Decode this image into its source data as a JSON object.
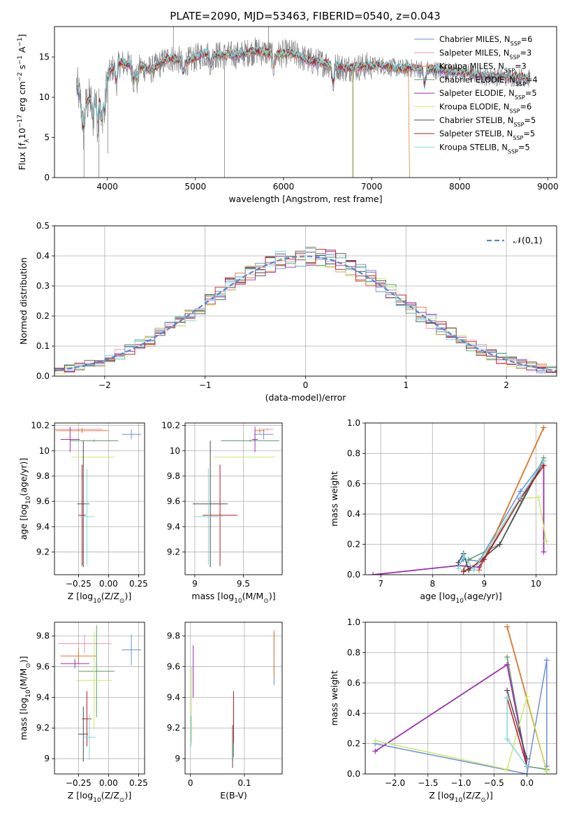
{
  "figure_title": "PLATE=2090, MJD=53463, FIBERID=0540, z=0.043",
  "colors": [
    "#6a8fd8",
    "#f08fb4",
    "#d97a2b",
    "#5a9a6a",
    "#9b2fae",
    "#cbe86b",
    "#4a4a4a",
    "#c0181f",
    "#7fd8e0"
  ],
  "legend": [
    "Chabrier MILES, N$_{SSP}$=6",
    "Salpeter MILES, N$_{SSP}$=3",
    "Kroupa MILES, N$_{SSP}$=3",
    "Chabrier ELODIE, N$_{SSP}$=4",
    "Salpeter ELODIE, N$_{SSP}$=5",
    "Kroupa ELODIE, N$_{SSP}$=6",
    "Chabrier STELIB, N$_{SSP}$=5",
    "Salpeter STELIB, N$_{SSP}$=5",
    "Kroupa STELIB, N$_{SSP}$=5"
  ],
  "chart_data": [
    {
      "id": "spectrum",
      "type": "line",
      "xlabel": "wavelength [Angstrom, rest frame]",
      "ylabel": "Flux [f$_\\lambda$10$^{-17}$ erg cm$^{-2}$ s$^{-1}$ A$^{-1}$]",
      "xlim": [
        3400,
        9100
      ],
      "ylim": [
        0,
        18.8
      ],
      "xticks": [
        4000,
        5000,
        6000,
        7000,
        8000,
        9000
      ],
      "yticks": [
        0,
        5,
        10,
        15
      ],
      "grid": false,
      "legend_placement": "right",
      "data_shape": [
        [
          3650,
          11.5
        ],
        [
          3720,
          8.5
        ],
        [
          3800,
          9.8
        ],
        [
          3900,
          11.0
        ],
        [
          4000,
          12.5
        ],
        [
          4100,
          14.3
        ],
        [
          4300,
          14.0
        ],
        [
          4500,
          13.4
        ],
        [
          4700,
          14.9
        ],
        [
          4900,
          14.4
        ],
        [
          5100,
          15.4
        ],
        [
          5300,
          15.2
        ],
        [
          5500,
          15.3
        ],
        [
          5700,
          15.8
        ],
        [
          5900,
          15.3
        ],
        [
          6100,
          15.5
        ],
        [
          6300,
          14.5
        ],
        [
          6500,
          14.2
        ],
        [
          6700,
          13.6
        ],
        [
          6900,
          13.8
        ],
        [
          7100,
          14.0
        ],
        [
          7300,
          13.6
        ],
        [
          7500,
          13.6
        ],
        [
          7700,
          13.4
        ],
        [
          7900,
          13.2
        ],
        [
          8100,
          13.0
        ],
        [
          8300,
          12.6
        ],
        [
          8500,
          12.5
        ],
        [
          8700,
          12.5
        ],
        [
          8800,
          12.3
        ]
      ]
    },
    {
      "id": "residuals",
      "type": "step",
      "xlabel": "(data-model)/error",
      "ylabel": "Normed distribution",
      "xlim": [
        -2.5,
        2.5
      ],
      "ylim": [
        0,
        0.5
      ],
      "xticks": [
        -2,
        -1,
        0,
        1,
        2
      ],
      "yticks": [
        0.0,
        0.1,
        0.2,
        0.3,
        0.4,
        0.5
      ],
      "grid": true,
      "reference_label": "$\\mathcal{N}(0,1)$",
      "legend_placement": "top-right"
    },
    {
      "id": "age_Z",
      "type": "errorbar",
      "xlabel": "Z [log$_{10}$(Z/Z$_\\odot$)]",
      "ylabel": "age  [log$_{10}$(age/yr)]",
      "xlim": [
        -0.45,
        0.3
      ],
      "ylim": [
        9.02,
        10.22
      ],
      "xticks": [
        -0.25,
        0.0,
        0.25
      ],
      "xticklabels": [
        "−0.25",
        "0.00",
        "0.25"
      ],
      "yticks": [
        9.2,
        9.4,
        9.6,
        9.8,
        10.0,
        10.2
      ],
      "grid": true,
      "points": [
        [
          0.19,
          10.13,
          0.08,
          0.04,
          0
        ],
        [
          -0.25,
          10.17,
          0.2,
          0.01,
          1
        ],
        [
          -0.22,
          10.16,
          0.22,
          0.02,
          2
        ],
        [
          -0.12,
          10.08,
          0.2,
          0.01,
          3
        ],
        [
          -0.32,
          10.09,
          0.08,
          0.1,
          4
        ],
        [
          -0.13,
          9.95,
          0.18,
          0.0,
          5
        ],
        [
          -0.21,
          9.58,
          0.05,
          0.5,
          6
        ],
        [
          -0.22,
          9.49,
          0.03,
          0.4,
          7
        ],
        [
          -0.18,
          9.48,
          0.06,
          0.38,
          8
        ]
      ]
    },
    {
      "id": "age_mass",
      "type": "errorbar",
      "xlabel": "mass [log$_{10}$(M/M$_\\odot$)]",
      "ylabel": "",
      "xlim": [
        8.9,
        9.9
      ],
      "ylim": [
        9.02,
        10.22
      ],
      "xticks": [
        9.0,
        9.5
      ],
      "yticks": [
        9.2,
        9.4,
        9.6,
        9.8,
        10.0,
        10.2
      ],
      "grid": true,
      "points": [
        [
          9.71,
          10.13,
          0.1,
          0.04,
          0
        ],
        [
          9.75,
          10.17,
          0.06,
          0.01,
          1
        ],
        [
          9.67,
          10.16,
          0.05,
          0.02,
          2
        ],
        [
          9.57,
          10.08,
          0.3,
          0.01,
          3
        ],
        [
          9.62,
          10.09,
          0.03,
          0.1,
          4
        ],
        [
          9.51,
          9.95,
          0.32,
          0.0,
          5
        ],
        [
          9.16,
          9.58,
          0.18,
          0.5,
          6
        ],
        [
          9.26,
          9.49,
          0.18,
          0.4,
          7
        ],
        [
          9.14,
          9.48,
          0.15,
          0.38,
          8
        ]
      ]
    },
    {
      "id": "mw_age",
      "type": "line",
      "xlabel": "age  [log$_{10}$(age/yr)]",
      "ylabel": "mass weight",
      "xlim": [
        6.7,
        10.4
      ],
      "ylim": [
        0,
        1.0
      ],
      "xticks": [
        7,
        8,
        9,
        10
      ],
      "yticks": [
        0.0,
        0.2,
        0.4,
        0.6,
        0.8,
        1.0
      ],
      "grid": true,
      "series": [
        {
          "c": 0,
          "p": [
            [
              8.5,
              0.06
            ],
            [
              8.6,
              0.1
            ],
            [
              8.9,
              0.09
            ],
            [
              9.7,
              0.55
            ],
            [
              10.15,
              0.75
            ]
          ]
        },
        {
          "c": 1,
          "p": [
            [
              8.9,
              0.03
            ],
            [
              10.15,
              0.97
            ]
          ]
        },
        {
          "c": 2,
          "p": [
            [
              8.9,
              0.03
            ],
            [
              10.15,
              0.97
            ]
          ]
        },
        {
          "c": 3,
          "p": [
            [
              8.6,
              0.03
            ],
            [
              8.7,
              0.1
            ],
            [
              9.3,
              0.2
            ],
            [
              10.15,
              0.77
            ]
          ]
        },
        {
          "c": 4,
          "p": [
            [
              6.85,
              0.0
            ],
            [
              8.5,
              0.06
            ],
            [
              8.9,
              0.05
            ],
            [
              9.7,
              0.5
            ],
            [
              10.15,
              0.72
            ],
            [
              10.15,
              0.15
            ]
          ]
        },
        {
          "c": 5,
          "p": [
            [
              8.6,
              0.02
            ],
            [
              8.9,
              0.08
            ],
            [
              9.7,
              0.5
            ],
            [
              10.05,
              0.51
            ],
            [
              10.2,
              0.22
            ]
          ]
        },
        {
          "c": 6,
          "p": [
            [
              8.5,
              0.08
            ],
            [
              8.6,
              0.14
            ],
            [
              8.7,
              0.03
            ],
            [
              9.3,
              0.2
            ],
            [
              10.15,
              0.75
            ]
          ]
        },
        {
          "c": 7,
          "p": [
            [
              8.6,
              0.02
            ],
            [
              9.0,
              0.1
            ],
            [
              9.7,
              0.5
            ],
            [
              10.15,
              0.72
            ]
          ]
        },
        {
          "c": 8,
          "p": [
            [
              8.5,
              0.04
            ],
            [
              8.6,
              0.13
            ],
            [
              8.8,
              0.03
            ],
            [
              9.7,
              0.51
            ],
            [
              10.15,
              0.75
            ]
          ]
        }
      ]
    },
    {
      "id": "mass_Z",
      "type": "errorbar",
      "xlabel": "Z [log$_{10}$(Z/Z$_\\odot$)]",
      "ylabel": "mass [log$_{10}$(M/M$_\\odot$)]",
      "xlim": [
        -0.45,
        0.3
      ],
      "ylim": [
        8.9,
        9.89
      ],
      "xticks": [
        -0.25,
        0.0,
        0.25
      ],
      "xticklabels": [
        "−0.25",
        "0.00",
        "0.25"
      ],
      "yticks": [
        9.0,
        9.2,
        9.4,
        9.6,
        9.8
      ],
      "grid": true,
      "points": [
        [
          0.19,
          9.71,
          0.08,
          0.1,
          0
        ],
        [
          -0.2,
          9.75,
          0.22,
          0.06,
          1
        ],
        [
          -0.25,
          9.67,
          0.15,
          0.05,
          2
        ],
        [
          -0.1,
          9.57,
          0.15,
          0.3,
          3
        ],
        [
          -0.28,
          9.62,
          0.12,
          0.03,
          4
        ],
        [
          -0.12,
          9.51,
          0.15,
          0.32,
          5
        ],
        [
          -0.21,
          9.16,
          0.04,
          0.18,
          6
        ],
        [
          -0.18,
          9.26,
          0.04,
          0.18,
          7
        ],
        [
          -0.16,
          9.14,
          0.05,
          0.15,
          8
        ]
      ]
    },
    {
      "id": "mass_EBV",
      "type": "errorbar",
      "xlabel": "E(B-V)",
      "ylabel": "",
      "xlim": [
        -0.01,
        0.17
      ],
      "ylim": [
        8.9,
        9.89
      ],
      "xticks": [
        0.0,
        0.1
      ],
      "yticks": [
        9.0,
        9.2,
        9.4,
        9.6,
        9.8
      ],
      "grid": true,
      "points": [
        [
          0.155,
          9.65,
          0,
          0.17,
          0
        ],
        [
          0.155,
          9.72,
          0,
          0.12,
          1
        ],
        [
          0.155,
          9.68,
          0,
          0.15,
          2
        ],
        [
          0.08,
          9.17,
          0,
          0.16,
          3
        ],
        [
          0.005,
          9.57,
          0,
          0.17,
          4
        ],
        [
          0.002,
          9.35,
          0,
          0.25,
          5
        ],
        [
          0.078,
          9.08,
          0,
          0.14,
          6
        ],
        [
          0.08,
          9.27,
          0,
          0.17,
          7
        ],
        [
          0.001,
          9.18,
          0,
          0.1,
          8
        ]
      ]
    },
    {
      "id": "mw_Z",
      "type": "line",
      "xlabel": "Z [log$_{10}$(Z/Z$_\\odot$)]",
      "ylabel": "mass weight",
      "xlim": [
        -2.45,
        0.45
      ],
      "ylim": [
        0,
        1.0
      ],
      "xticks": [
        -2.0,
        -1.5,
        -1.0,
        -0.5,
        0.0
      ],
      "xticklabels": [
        "−2.0",
        "−1.5",
        "−1.0",
        "−0.5",
        "0.0"
      ],
      "yticks": [
        0.0,
        0.2,
        0.4,
        0.6,
        0.8,
        1.0
      ],
      "grid": true,
      "series": [
        {
          "c": 0,
          "p": [
            [
              -2.3,
              0.2
            ],
            [
              0.0,
              0.0
            ],
            [
              0.3,
              0.75
            ],
            [
              0.3,
              0.05
            ]
          ]
        },
        {
          "c": 1,
          "p": [
            [
              -0.3,
              0.97
            ],
            [
              0.3,
              0.02
            ]
          ]
        },
        {
          "c": 2,
          "p": [
            [
              -0.3,
              0.97
            ],
            [
              0.3,
              0.02
            ]
          ]
        },
        {
          "c": 3,
          "p": [
            [
              -0.3,
              0.77
            ],
            [
              0.0,
              0.05
            ],
            [
              0.3,
              0.03
            ]
          ]
        },
        {
          "c": 4,
          "p": [
            [
              -2.3,
              0.15
            ],
            [
              -0.3,
              0.72
            ],
            [
              0.0,
              0.05
            ]
          ]
        },
        {
          "c": 5,
          "p": [
            [
              -2.3,
              0.22
            ],
            [
              -0.3,
              0.03
            ],
            [
              0.0,
              0.51
            ],
            [
              0.3,
              0.02
            ]
          ]
        },
        {
          "c": 6,
          "p": [
            [
              -0.3,
              0.55
            ],
            [
              0.0,
              0.1
            ]
          ]
        },
        {
          "c": 7,
          "p": [
            [
              -0.3,
              0.5
            ],
            [
              0.0,
              0.05
            ]
          ]
        },
        {
          "c": 8,
          "p": [
            [
              -0.3,
              0.5
            ],
            [
              -0.3,
              0.23
            ],
            [
              0.0,
              0.05
            ]
          ]
        }
      ]
    }
  ]
}
